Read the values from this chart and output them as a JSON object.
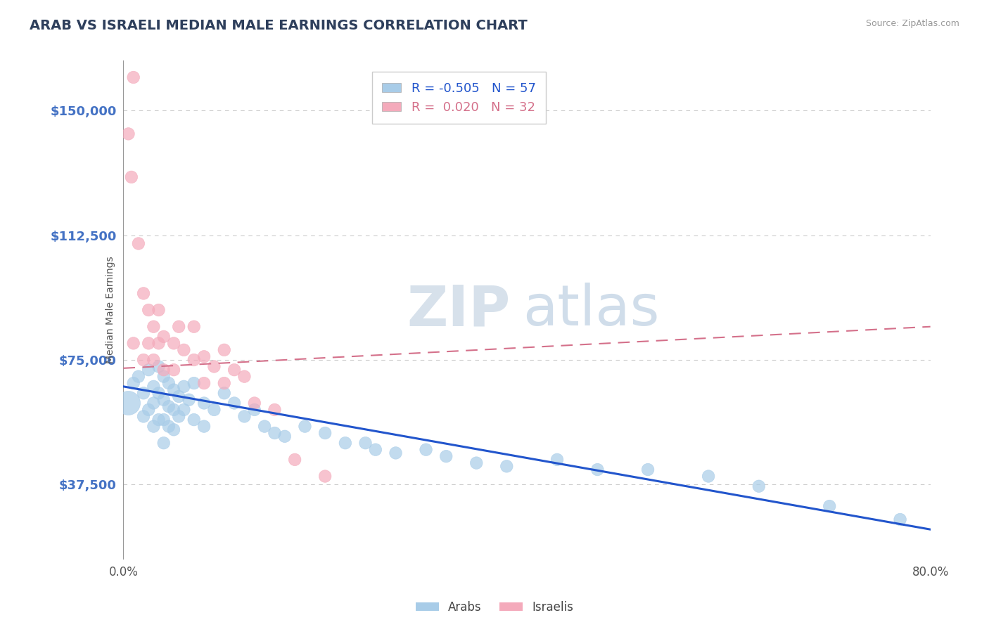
{
  "title": "ARAB VS ISRAELI MEDIAN MALE EARNINGS CORRELATION CHART",
  "source": "Source: ZipAtlas.com",
  "ylabel": "Median Male Earnings",
  "xlim": [
    0.0,
    0.8
  ],
  "ylim": [
    15000,
    165000
  ],
  "yticks": [
    37500,
    75000,
    112500,
    150000
  ],
  "ytick_labels": [
    "$37,500",
    "$75,000",
    "$112,500",
    "$150,000"
  ],
  "arab_color": "#A8CCE8",
  "israeli_color": "#F4AABB",
  "arab_line_color": "#2255CC",
  "israeli_line_color": "#D4708A",
  "arab_R": -0.505,
  "arab_N": 57,
  "israeli_R": 0.02,
  "israeli_N": 32,
  "watermark_zip": "ZIP",
  "watermark_atlas": "atlas",
  "title_color": "#333355",
  "axis_label_color": "#4472C4",
  "legend_label_arab": "Arabs",
  "legend_label_israeli": "Israelis",
  "arab_scatter_x": [
    0.005,
    0.01,
    0.015,
    0.02,
    0.02,
    0.025,
    0.025,
    0.03,
    0.03,
    0.03,
    0.035,
    0.035,
    0.035,
    0.04,
    0.04,
    0.04,
    0.04,
    0.045,
    0.045,
    0.045,
    0.05,
    0.05,
    0.05,
    0.055,
    0.055,
    0.06,
    0.06,
    0.065,
    0.07,
    0.07,
    0.08,
    0.08,
    0.09,
    0.1,
    0.11,
    0.12,
    0.13,
    0.14,
    0.15,
    0.16,
    0.18,
    0.2,
    0.22,
    0.24,
    0.25,
    0.27,
    0.3,
    0.32,
    0.35,
    0.38,
    0.43,
    0.47,
    0.52,
    0.58,
    0.63,
    0.7,
    0.77
  ],
  "arab_scatter_y": [
    62000,
    68000,
    70000,
    65000,
    58000,
    72000,
    60000,
    67000,
    62000,
    55000,
    73000,
    65000,
    57000,
    70000,
    63000,
    57000,
    50000,
    68000,
    61000,
    55000,
    66000,
    60000,
    54000,
    64000,
    58000,
    67000,
    60000,
    63000,
    68000,
    57000,
    62000,
    55000,
    60000,
    65000,
    62000,
    58000,
    60000,
    55000,
    53000,
    52000,
    55000,
    53000,
    50000,
    50000,
    48000,
    47000,
    48000,
    46000,
    44000,
    43000,
    45000,
    42000,
    42000,
    40000,
    37000,
    31000,
    27000
  ],
  "arab_big_bubble_idx": 0,
  "israeli_scatter_x": [
    0.005,
    0.008,
    0.01,
    0.01,
    0.015,
    0.02,
    0.02,
    0.025,
    0.025,
    0.03,
    0.03,
    0.035,
    0.035,
    0.04,
    0.04,
    0.05,
    0.05,
    0.055,
    0.06,
    0.07,
    0.07,
    0.08,
    0.08,
    0.09,
    0.1,
    0.1,
    0.11,
    0.12,
    0.13,
    0.15,
    0.17,
    0.2
  ],
  "israeli_scatter_y": [
    143000,
    130000,
    160000,
    80000,
    110000,
    95000,
    75000,
    90000,
    80000,
    85000,
    75000,
    90000,
    80000,
    82000,
    72000,
    80000,
    72000,
    85000,
    78000,
    85000,
    75000,
    76000,
    68000,
    73000,
    78000,
    68000,
    72000,
    70000,
    62000,
    60000,
    45000,
    40000
  ]
}
